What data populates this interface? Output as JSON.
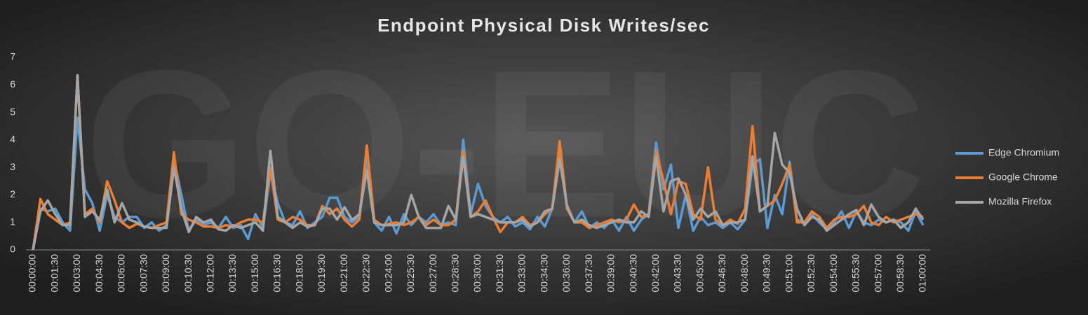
{
  "chart_data": {
    "type": "line",
    "title": "Endpoint Physical Disk Writes/sec",
    "watermark": "GO-EUC",
    "categories": [
      "00:00:00",
      null,
      null,
      "00:01:30",
      null,
      null,
      "00:03:00",
      null,
      null,
      "00:04:30",
      null,
      null,
      "00:06:00",
      null,
      null,
      "00:07:30",
      null,
      null,
      "00:09:00",
      null,
      null,
      "00:10:30",
      null,
      null,
      "00:12:00",
      null,
      null,
      "00:13:30",
      null,
      null,
      "00:15:00",
      null,
      null,
      "00:16:30",
      null,
      null,
      "00:18:00",
      null,
      null,
      "00:19:30",
      null,
      null,
      "00:21:00",
      null,
      null,
      "00:22:30",
      null,
      null,
      "00:24:00",
      null,
      null,
      "00:25:30",
      null,
      null,
      "00:27:00",
      null,
      null,
      "00:28:30",
      null,
      null,
      "00:30:00",
      null,
      null,
      "00:31:30",
      null,
      null,
      "00:33:00",
      null,
      null,
      "00:34:30",
      null,
      null,
      "00:36:00",
      null,
      null,
      "00:37:30",
      null,
      null,
      "00:39:00",
      null,
      null,
      "00:40:30",
      null,
      null,
      "00:42:00",
      null,
      null,
      "00:43:30",
      null,
      null,
      "00:45:00",
      null,
      null,
      "00:46:30",
      null,
      null,
      "00:48:00",
      null,
      null,
      "00:49:30",
      null,
      null,
      "00:51:00",
      null,
      null,
      "00:52:30",
      null,
      null,
      "00:54:00",
      null,
      null,
      "00:55:30",
      null,
      null,
      "00:57:00",
      null,
      null,
      "00:58:30",
      null,
      null,
      "01:00:00"
    ],
    "series": [
      {
        "name": "Edge Chromium",
        "color": "#5b9bd5",
        "values": [
          0,
          1.5,
          1.4,
          1.5,
          1.0,
          0.7,
          4.8,
          2.2,
          1.7,
          0.7,
          2.0,
          1.2,
          1.0,
          1.2,
          1.2,
          0.8,
          1.0,
          0.7,
          0.9,
          3.3,
          2.0,
          0.7,
          1.1,
          0.9,
          1.0,
          0.8,
          1.2,
          0.8,
          0.9,
          0.4,
          1.3,
          0.8,
          2.8,
          1.7,
          1.0,
          0.9,
          1.4,
          0.8,
          1.0,
          1.2,
          1.9,
          1.9,
          1.2,
          1.0,
          1.2,
          3.3,
          1.0,
          0.7,
          1.2,
          0.6,
          1.3,
          0.9,
          1.2,
          1.0,
          1.3,
          0.9,
          1.0,
          0.9,
          4.0,
          1.3,
          2.4,
          1.6,
          1.2,
          1.0,
          1.2,
          0.85,
          1.0,
          0.75,
          1.2,
          0.85,
          1.5,
          3.5,
          1.5,
          1.0,
          1.4,
          0.8,
          1.0,
          0.8,
          1.1,
          0.7,
          1.2,
          0.7,
          1.1,
          1.3,
          3.9,
          2.2,
          3.1,
          0.8,
          2.0,
          0.7,
          1.2,
          0.9,
          1.0,
          0.8,
          1.0,
          0.75,
          1.1,
          3.1,
          3.3,
          0.8,
          2.0,
          1.3,
          3.2,
          1.1,
          1.0,
          1.3,
          1.0,
          0.75,
          1.0,
          1.4,
          0.8,
          1.4,
          1.0,
          0.9,
          1.1,
          1.0,
          1.1,
          1.0,
          0.7,
          1.4,
          0.9
        ]
      },
      {
        "name": "Google Chrome",
        "color": "#ed7d31",
        "values": [
          0,
          1.85,
          1.3,
          1.1,
          0.9,
          1.0,
          6.3,
          1.3,
          1.5,
          1.0,
          2.5,
          1.8,
          1.0,
          0.8,
          0.95,
          0.85,
          0.8,
          0.9,
          1.0,
          3.55,
          1.3,
          1.1,
          1.0,
          0.85,
          0.85,
          0.8,
          0.9,
          0.85,
          1.0,
          1.1,
          1.1,
          1.0,
          3.0,
          1.1,
          1.0,
          1.2,
          1.1,
          0.9,
          0.9,
          1.6,
          1.3,
          1.5,
          1.1,
          0.85,
          1.1,
          3.8,
          1.1,
          0.9,
          0.95,
          1.0,
          0.9,
          1.0,
          1.2,
          0.9,
          1.1,
          0.9,
          0.9,
          1.1,
          3.6,
          1.2,
          1.4,
          1.8,
          1.2,
          0.65,
          1.0,
          1.0,
          1.2,
          0.9,
          1.0,
          1.3,
          1.5,
          3.95,
          1.5,
          1.0,
          1.0,
          0.8,
          0.9,
          1.0,
          1.1,
          1.0,
          1.1,
          1.65,
          1.2,
          1.3,
          3.6,
          2.5,
          1.3,
          2.5,
          2.4,
          1.3,
          1.1,
          3.0,
          1.1,
          0.9,
          1.1,
          0.95,
          1.5,
          4.5,
          1.4,
          1.6,
          1.8,
          2.4,
          3.1,
          1.0,
          1.0,
          1.4,
          1.2,
          0.8,
          1.1,
          1.2,
          1.2,
          1.3,
          1.6,
          1.0,
          0.9,
          1.2,
          1.0,
          1.1,
          1.2,
          1.3,
          1.2
        ]
      },
      {
        "name": "Mozilla Firefox",
        "color": "#a5a5a5",
        "values": [
          0,
          1.4,
          1.8,
          1.3,
          0.9,
          0.9,
          6.35,
          1.2,
          1.4,
          1.1,
          2.2,
          1.0,
          1.7,
          1.1,
          1.0,
          0.85,
          0.8,
          0.8,
          0.8,
          3.0,
          1.5,
          0.65,
          1.2,
          1.0,
          1.1,
          0.75,
          0.7,
          0.9,
          0.8,
          0.9,
          1.0,
          0.7,
          3.6,
          1.2,
          1.0,
          0.8,
          1.0,
          0.85,
          0.9,
          1.5,
          1.5,
          1.1,
          1.55,
          1.1,
          1.3,
          2.9,
          1.0,
          0.9,
          0.9,
          0.9,
          1.0,
          2.0,
          1.2,
          0.8,
          0.8,
          0.8,
          1.6,
          1.1,
          3.4,
          1.2,
          1.3,
          1.2,
          1.1,
          1.0,
          1.0,
          1.0,
          1.1,
          0.85,
          1.0,
          1.4,
          1.5,
          3.3,
          1.6,
          1.0,
          1.1,
          0.9,
          0.8,
          0.9,
          1.0,
          1.1,
          1.0,
          1.0,
          1.4,
          1.2,
          3.4,
          1.4,
          2.5,
          2.6,
          2.0,
          1.1,
          1.5,
          1.2,
          1.4,
          0.9,
          1.0,
          1.0,
          1.1,
          3.4,
          1.4,
          1.6,
          4.25,
          3.1,
          2.8,
          1.5,
          0.9,
          1.2,
          1.1,
          0.7,
          0.9,
          1.1,
          1.3,
          1.45,
          0.9,
          1.65,
          1.2,
          1.0,
          1.1,
          0.8,
          1.0,
          1.5,
          1.1
        ]
      }
    ],
    "ylim": [
      0,
      7
    ],
    "yticks": [
      0,
      1,
      2,
      3,
      4,
      5,
      6,
      7
    ],
    "grid": false,
    "legend": "right"
  }
}
